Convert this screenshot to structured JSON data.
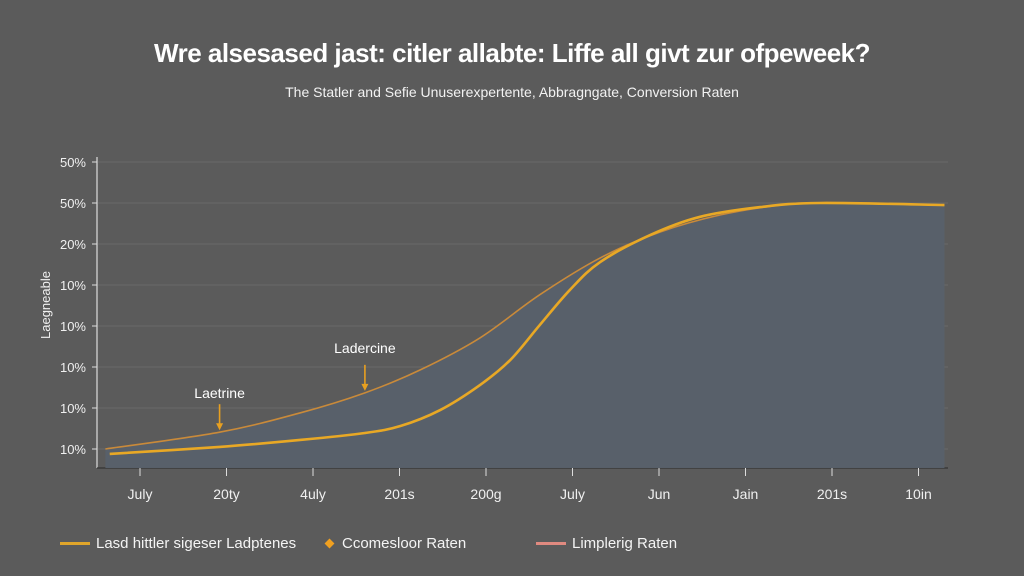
{
  "chart_data": {
    "type": "area",
    "title": "Wre alsesased jast: citler allabte: Liffe all givt zur ofpeweek?",
    "subtitle": "The Statler and Sefie Unuserexpertente, Abbragngate, Conversion Raten",
    "ylabel": "Laegneable",
    "xlabel": "",
    "x_tick_labels": [
      "July",
      "20ty",
      "4uly",
      "201s",
      "200g",
      "July",
      "Jun",
      "Jain",
      "201s",
      "10in"
    ],
    "y_tick_labels": [
      "10%",
      "10%",
      "10%",
      "10%",
      "10%",
      "20%",
      "50%",
      "50%",
      "50%"
    ],
    "y_tick_labels_note_free": true,
    "grid": true,
    "legend_position": "bottom",
    "series": [
      {
        "name": "Limplerig Raten",
        "kind": "area-boundary",
        "color": "#c98a3a",
        "x": [
          -0.4,
          0.92,
          1.85,
          2.6,
          3.24,
          3.93,
          4.62,
          5.32,
          6.01,
          6.71,
          7.4,
          7.86,
          9.3
        ],
        "y": [
          0,
          0.41,
          0.88,
          1.37,
          1.93,
          2.71,
          3.76,
          4.66,
          5.29,
          5.71,
          5.95,
          6.0,
          5.95
        ]
      },
      {
        "name": "Lasd hittler sigeser Ladptenes",
        "kind": "line",
        "color": "#e8a825",
        "x": [
          -0.35,
          0.92,
          1.85,
          2.6,
          3.01,
          3.47,
          3.93,
          4.28,
          4.62,
          4.97,
          5.32,
          5.9,
          6.47,
          7.17,
          7.86,
          9.3
        ],
        "y": [
          -0.12,
          0.05,
          0.22,
          0.39,
          0.56,
          0.95,
          1.56,
          2.17,
          3.02,
          3.88,
          4.56,
          5.22,
          5.66,
          5.9,
          6.0,
          5.95
        ]
      }
    ],
    "annotations": [
      {
        "text": "Laetrine",
        "x": 0.92,
        "y": 0.41
      },
      {
        "text": "Laderсine",
        "x": 2.6,
        "y": 1.37
      }
    ],
    "legend": [
      {
        "label": "Lasd hittler sigeser Ladptenes",
        "marker": "line",
        "color": "#e0a52a"
      },
      {
        "label": "Ccomesloor Raten",
        "marker": "diamond",
        "color": "#f0a020"
      },
      {
        "label": "Limplerig Raten",
        "marker": "line",
        "color": "#e08a80"
      }
    ],
    "area_color": "#58616b"
  }
}
